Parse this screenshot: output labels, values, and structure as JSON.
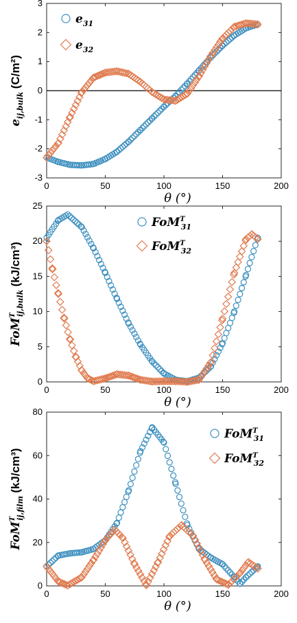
{
  "chart_data": [
    {
      "type": "scatter",
      "title": "",
      "xlabel": "θ (°)",
      "ylabel": "e_{ij,bulk} (C/m²)",
      "ylabel_main": "e",
      "ylabel_sub": "ij,bulk",
      "ylabel_unit": "(C/m²)",
      "xlim": [
        0,
        200
      ],
      "ylim": [
        -3,
        3
      ],
      "xticks": [
        "0",
        "50",
        "100",
        "150",
        "200"
      ],
      "yticks": [
        "-3",
        "-2",
        "-1",
        "0",
        "1",
        "2",
        "3"
      ],
      "zero_line": true,
      "grid": false,
      "legend_position": "top-left",
      "series": [
        {
          "name": "e31",
          "label_main": "e",
          "label_sub": "31",
          "marker": "circle",
          "color": "#3d8fbf",
          "x": [
            0,
            10,
            20,
            30,
            40,
            50,
            60,
            70,
            80,
            90,
            100,
            110,
            120,
            130,
            140,
            150,
            160,
            170,
            180
          ],
          "y": [
            -2.3,
            -2.45,
            -2.55,
            -2.57,
            -2.52,
            -2.35,
            -2.1,
            -1.75,
            -1.35,
            -0.95,
            -0.55,
            -0.18,
            0.25,
            0.7,
            1.15,
            1.55,
            1.9,
            2.15,
            2.28
          ]
        },
        {
          "name": "e32",
          "label_main": "e",
          "label_sub": "32",
          "marker": "diamond",
          "color": "#e07b4f",
          "x": [
            0,
            10,
            20,
            30,
            40,
            50,
            60,
            70,
            80,
            90,
            100,
            110,
            120,
            130,
            140,
            150,
            160,
            170,
            180
          ],
          "y": [
            -2.3,
            -1.8,
            -0.9,
            -0.05,
            0.45,
            0.62,
            0.67,
            0.58,
            0.3,
            -0.05,
            -0.3,
            -0.35,
            -0.1,
            0.5,
            1.2,
            1.8,
            2.2,
            2.32,
            2.28
          ]
        }
      ]
    },
    {
      "type": "scatter",
      "title": "",
      "xlabel": "θ (°)",
      "ylabel": "FoM^T_{ij,bulk} (kJ/cm³)",
      "ylabel_main": "FoM",
      "ylabel_sup": "T",
      "ylabel_sub": "ij,bulk",
      "ylabel_unit": "(kJ/cm³)",
      "xlim": [
        0,
        200
      ],
      "ylim": [
        0,
        25
      ],
      "xticks": [
        "0",
        "50",
        "100",
        "150",
        "200"
      ],
      "yticks": [
        "0",
        "5",
        "10",
        "15",
        "20",
        "25"
      ],
      "zero_line": false,
      "grid": false,
      "legend_position": "top-center",
      "series": [
        {
          "name": "FoM^T_31",
          "label_main": "FoM",
          "label_sup": "T",
          "label_sub": "31",
          "marker": "circle",
          "color": "#3d8fbf",
          "x": [
            0,
            10,
            18,
            30,
            40,
            50,
            60,
            70,
            80,
            90,
            100,
            110,
            120,
            130,
            140,
            150,
            160,
            170,
            180
          ],
          "y": [
            20.5,
            23.0,
            23.8,
            22.0,
            19.0,
            15.5,
            11.8,
            8.3,
            5.3,
            2.9,
            1.2,
            0.3,
            0.1,
            0.6,
            2.2,
            5.5,
            10.0,
            15.2,
            20.5
          ]
        },
        {
          "name": "FoM^T_32",
          "label_main": "FoM",
          "label_sup": "T",
          "label_sub": "32",
          "marker": "diamond",
          "color": "#e07b4f",
          "x": [
            0,
            5,
            10,
            15,
            20,
            25,
            30,
            35,
            40,
            50,
            60,
            70,
            80,
            90,
            100,
            110,
            120,
            130,
            140,
            150,
            160,
            170,
            175,
            180
          ],
          "y": [
            20.0,
            16.0,
            12.5,
            9.0,
            6.0,
            3.5,
            1.6,
            0.5,
            0.1,
            0.5,
            1.1,
            0.9,
            0.3,
            0.05,
            0.1,
            0.1,
            0.0,
            0.3,
            2.8,
            9.0,
            15.5,
            20.3,
            21.0,
            20.3
          ]
        }
      ]
    },
    {
      "type": "scatter",
      "title": "",
      "xlabel": "θ (°)",
      "ylabel": "FoM^T_{ij,film} (kJ/cm³)",
      "ylabel_main": "FoM",
      "ylabel_sup": "T",
      "ylabel_sub": "ij,film",
      "ylabel_unit": "(kJ/cm³)",
      "xlim": [
        0,
        200
      ],
      "ylim": [
        0,
        80
      ],
      "xticks": [
        "0",
        "50",
        "100",
        "150",
        "200"
      ],
      "yticks": [
        "0",
        "20",
        "40",
        "60",
        "80"
      ],
      "zero_line": false,
      "grid": false,
      "legend_position": "top-right",
      "series": [
        {
          "name": "FoM^T_31",
          "label_main": "FoM",
          "label_sup": "T",
          "label_sub": "31",
          "marker": "circle",
          "color": "#3d8fbf",
          "x": [
            0,
            10,
            20,
            30,
            40,
            50,
            60,
            70,
            80,
            90,
            100,
            110,
            120,
            130,
            140,
            150,
            160,
            165,
            170,
            180
          ],
          "y": [
            9.0,
            14.0,
            15.0,
            15.5,
            17.0,
            21.0,
            29.0,
            44.0,
            62.0,
            73.0,
            66.0,
            47.0,
            28.0,
            17.0,
            13.0,
            10.0,
            4.0,
            1.0,
            4.0,
            9.0
          ]
        },
        {
          "name": "FoM^T_32",
          "label_main": "FoM",
          "label_sup": "T",
          "label_sub": "32",
          "marker": "diamond",
          "color": "#e07b4f",
          "x": [
            0,
            10,
            18,
            30,
            40,
            50,
            58,
            65,
            75,
            85,
            95,
            105,
            115,
            125,
            135,
            145,
            155,
            165,
            172,
            180
          ],
          "y": [
            9.0,
            2.0,
            0.2,
            4.0,
            12.0,
            21.0,
            26.0,
            22.0,
            10.0,
            0.3,
            11.0,
            23.0,
            28.0,
            23.0,
            12.0,
            3.0,
            0.5,
            6.0,
            11.0,
            8.0
          ]
        }
      ]
    }
  ]
}
